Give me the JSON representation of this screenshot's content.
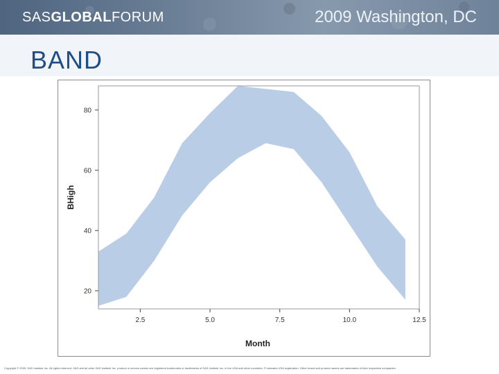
{
  "header": {
    "logo_prefix": "SAS",
    "logo_bold": "GLOBAL",
    "logo_suffix": "FORUM",
    "event": "2009 Washington, DC"
  },
  "slide": {
    "title": "BAND"
  },
  "chart_data": {
    "type": "area",
    "variant": "band",
    "title": "",
    "xlabel": "Month",
    "ylabel": "BHigh",
    "xlim": [
      1,
      12.5
    ],
    "ylim": [
      14,
      88
    ],
    "x_ticks": [
      2.5,
      5.0,
      7.5,
      10.0,
      12.5
    ],
    "x_tick_labels": [
      "2.5",
      "5.0",
      "7.5",
      "10.0",
      "12.5"
    ],
    "y_ticks": [
      20,
      40,
      60,
      80
    ],
    "y_tick_labels": [
      "20",
      "40",
      "60",
      "80"
    ],
    "color": "#b9cde6",
    "x": [
      1,
      2,
      3,
      4,
      5,
      6,
      7,
      8,
      9,
      10,
      11,
      12
    ],
    "upper": [
      33,
      39,
      51,
      69,
      79,
      88,
      87,
      86,
      78,
      66,
      48,
      37
    ],
    "lower": [
      15,
      18,
      30,
      45,
      56,
      64,
      69,
      67,
      56,
      42,
      28,
      17
    ]
  },
  "footer": {
    "text": "Copyright © 2009, SAS Institute Inc. All rights reserved. SAS and all other SAS Institute Inc. product or service names are registered trademarks or trademarks of SAS Institute Inc. in the USA and other countries. ® indicates USA registration. Other brand and product names are trademarks of their respective companies."
  }
}
